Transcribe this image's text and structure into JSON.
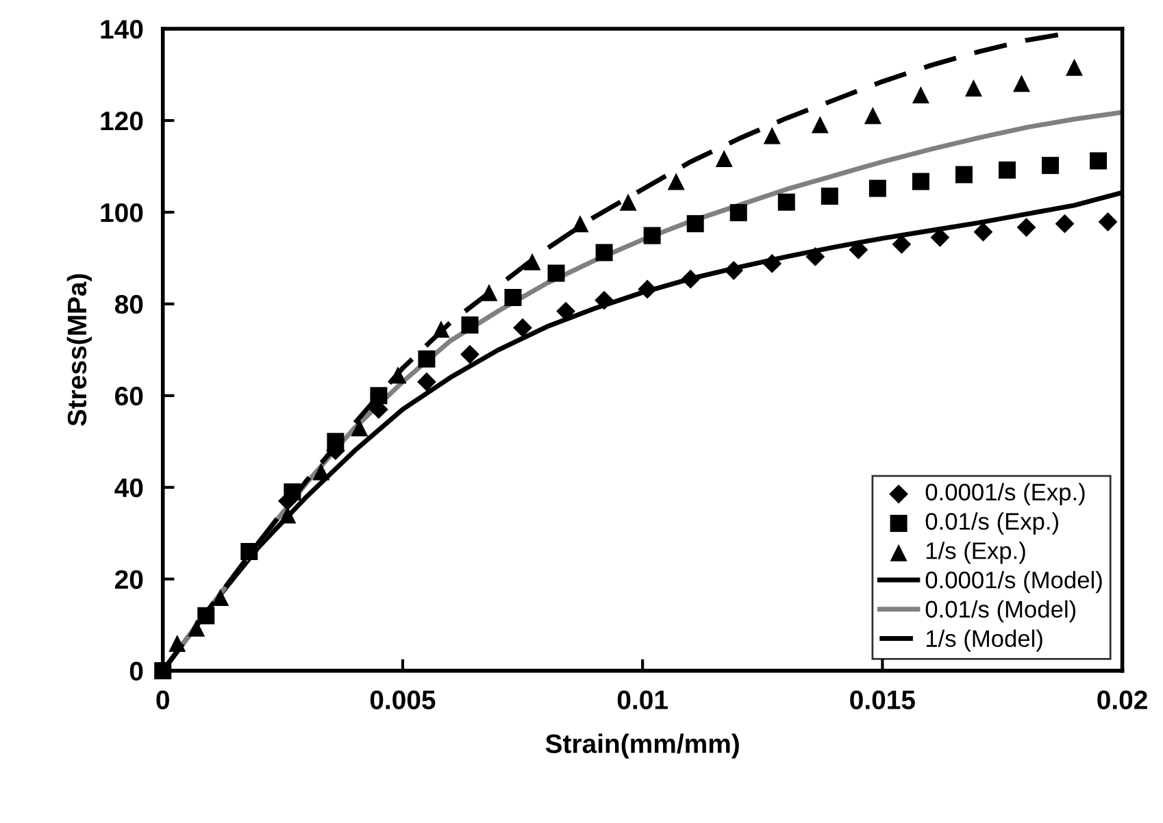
{
  "chart_data": {
    "type": "scatter",
    "xlabel": "Strain(mm/mm)",
    "ylabel": "Stress(MPa)",
    "xlim": [
      0,
      0.02
    ],
    "ylim": [
      0,
      140
    ],
    "xticks": [
      0,
      0.005,
      0.01,
      0.015,
      0.02
    ],
    "yticks": [
      0,
      20,
      40,
      60,
      80,
      100,
      120,
      140
    ],
    "grid": false,
    "legend": "bottom right",
    "series": [
      {
        "name": "0.0001/s (Exp.)",
        "marker": "diamond",
        "color": "#000000",
        "x": [
          0.0026,
          0.0036,
          0.0045,
          0.0055,
          0.0064,
          0.0075,
          0.0084,
          0.0092,
          0.0101,
          0.011,
          0.0119,
          0.0127,
          0.0136,
          0.0145,
          0.0154,
          0.0162,
          0.0171,
          0.018,
          0.0188,
          0.0197
        ],
        "values": [
          37,
          48,
          57,
          63,
          69,
          74.8,
          78.4,
          80.8,
          83.2,
          85.4,
          87.3,
          88.8,
          90.3,
          91.8,
          93,
          94.5,
          95.7,
          96.7,
          97.5,
          97.9
        ]
      },
      {
        "name": "0.01/s (Exp.)",
        "marker": "square",
        "color": "#000000",
        "x": [
          0,
          0.0009,
          0.0018,
          0.0027,
          0.0036,
          0.0045,
          0.0055,
          0.0064,
          0.0073,
          0.0082,
          0.0092,
          0.0102,
          0.0111,
          0.012,
          0.013,
          0.0139,
          0.0149,
          0.0158,
          0.0167,
          0.0176,
          0.0185,
          0.0195
        ],
        "values": [
          0,
          12,
          26,
          39,
          50,
          60,
          68,
          75.4,
          81.4,
          86.7,
          91.2,
          94.9,
          97.5,
          99.9,
          102.2,
          103.5,
          105.2,
          106.7,
          108.2,
          109.2,
          110.2,
          111.2
        ]
      },
      {
        "name": "1/s (Exp.)",
        "marker": "triangle",
        "color": "#000000",
        "x": [
          0.0003,
          0.0007,
          0.0012,
          0.0026,
          0.0033,
          0.0041,
          0.0049,
          0.0058,
          0.0068,
          0.0077,
          0.0087,
          0.0097,
          0.0107,
          0.0117,
          0.0127,
          0.0137,
          0.0148,
          0.0158,
          0.0169,
          0.0179,
          0.019
        ],
        "values": [
          6,
          9.3,
          16,
          34,
          43.4,
          53,
          64.5,
          74.5,
          82.5,
          89.2,
          97.5,
          102.2,
          106.7,
          111.7,
          116.7,
          119.1,
          121.1,
          125.6,
          127.1,
          128.1,
          131.6
        ]
      },
      {
        "name": "0.0001/s (Model)",
        "type": "line",
        "line_style": "solid",
        "color": "#000000",
        "x": [
          0,
          0.001,
          0.002,
          0.003,
          0.004,
          0.005,
          0.006,
          0.007,
          0.008,
          0.009,
          0.01,
          0.011,
          0.012,
          0.013,
          0.014,
          0.015,
          0.016,
          0.017,
          0.018,
          0.019,
          0.02
        ],
        "values": [
          0,
          14,
          27,
          38,
          48,
          57,
          64,
          70,
          75,
          79,
          82.5,
          85.5,
          88,
          90.3,
          92.4,
          94.3,
          96,
          97.7,
          99.6,
          101.5,
          104.3
        ]
      },
      {
        "name": "0.01/s (Model)",
        "type": "line",
        "line_style": "solid",
        "color": "#808080",
        "x": [
          0,
          0.001,
          0.002,
          0.003,
          0.004,
          0.005,
          0.006,
          0.007,
          0.008,
          0.009,
          0.01,
          0.011,
          0.012,
          0.013,
          0.014,
          0.015,
          0.016,
          0.017,
          0.018,
          0.019,
          0.02
        ],
        "values": [
          0,
          14,
          28,
          41,
          53,
          63,
          72,
          78.5,
          84.5,
          89.5,
          94,
          98,
          101.5,
          105,
          108,
          111,
          113.7,
          116.2,
          118.5,
          120.3,
          121.8
        ]
      },
      {
        "name": "1/s (Model)",
        "type": "line",
        "line_style": "dashed",
        "color": "#000000",
        "x": [
          0,
          0.001,
          0.002,
          0.003,
          0.004,
          0.005,
          0.006,
          0.007,
          0.008,
          0.009,
          0.01,
          0.011,
          0.012,
          0.013,
          0.014,
          0.015,
          0.016,
          0.017,
          0.018,
          0.0189
        ],
        "values": [
          0,
          14,
          28,
          41.5,
          54,
          66,
          76,
          84,
          92,
          99,
          105,
          111,
          116,
          120.5,
          124.5,
          128.5,
          132,
          135,
          137.5,
          139.1
        ]
      }
    ]
  }
}
